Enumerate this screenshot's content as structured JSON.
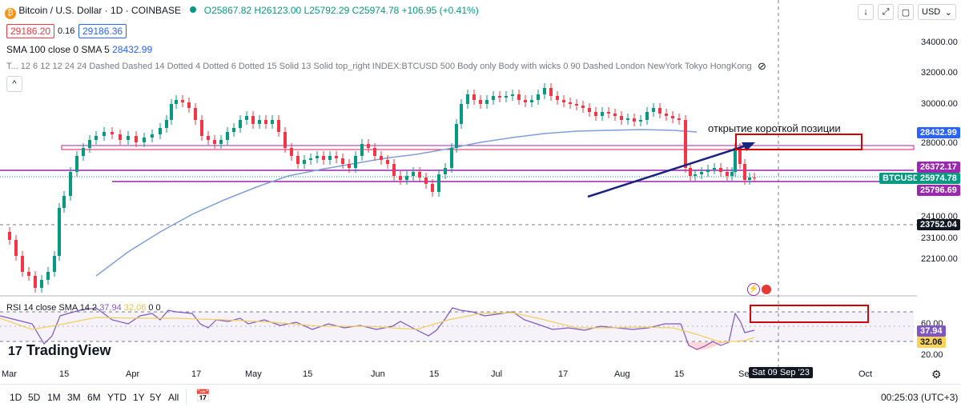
{
  "header": {
    "symbol": "Bitcoin / U.S. Dollar · 1D · COINBASE",
    "ohlc": "O25867.82 H26123.00 L25792.29 C25974.78 +106.95 (+0.41%)",
    "bid": "29186.20",
    "spread": "0.16",
    "ask": "29186.36",
    "currency": "USD",
    "sma_label": "SMA 100 close 0 SMA 5",
    "sma_value": "28432.99",
    "indicator_line": "T... 12 6 12 12 24 24 Dashed Dashed 14 Dotted 4 Dotted 6 Dotted 15 Solid 13 Solid top_right INDEX:BTCUSD 500 Body only Body with wicks 0 90 Dashed London NewYork Tokyo HongKong Sy..."
  },
  "annotation": "открытие короткой позиции",
  "price_axis": {
    "ticks": [
      "34000.00",
      "32000.00",
      "30000.00",
      "28000.00",
      "24100.00",
      "23100.00",
      "22100.00"
    ],
    "tags": [
      {
        "label": "28432.99",
        "color": "#2962ff"
      },
      {
        "label": "26372.17",
        "color": "#9c27b0"
      },
      {
        "label": "BTCUSD",
        "color": "#089981"
      },
      {
        "label": "25974.78",
        "color": "#089981"
      },
      {
        "label": "25796.69",
        "color": "#9c27b0"
      },
      {
        "label": "23752.04",
        "color": "#131722"
      }
    ]
  },
  "rsi": {
    "label": "RSI 14 close SMA 14 2",
    "value1": "37.94",
    "value2": "32.06",
    "extra": "0 0",
    "ticks": [
      "60.00",
      "20.00"
    ],
    "tag1": "37.94",
    "tag2": "32.06"
  },
  "time_axis": {
    "labels": [
      "Mar",
      "15",
      "Apr",
      "17",
      "May",
      "15",
      "Jun",
      "15",
      "Jul",
      "17",
      "Aug",
      "15",
      "Se",
      "Oct"
    ],
    "cursor_label": "Sat 09 Sep '23"
  },
  "ranges": [
    "1D",
    "5D",
    "1M",
    "3M",
    "6M",
    "YTD",
    "1Y",
    "5Y",
    "All"
  ],
  "clock": "00:25:03 (UTC+3)",
  "logo": "TradingView",
  "colors": {
    "up": "#089981",
    "down": "#f23645",
    "sma": "#7f9fd9",
    "purple": "#9c27b0",
    "pink": "#e91e63",
    "rsi": "#7e57c2",
    "arrow": "#1a237e",
    "box": "#d50000"
  }
}
